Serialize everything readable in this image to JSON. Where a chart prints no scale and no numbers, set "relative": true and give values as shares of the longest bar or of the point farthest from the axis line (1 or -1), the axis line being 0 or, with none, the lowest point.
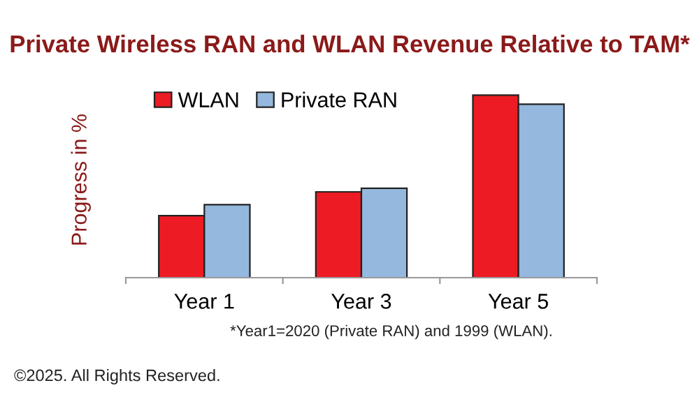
{
  "chart_data": {
    "type": "bar",
    "title": "Private Wireless RAN and WLAN Revenue Relative to TAM*",
    "ylabel": "Progress in %",
    "categories": [
      "Year 1",
      "Year 3",
      "Year 5"
    ],
    "relative": true,
    "legend": "top left",
    "grid": false,
    "series": [
      {
        "name": "WLAN",
        "color": "#ed1c24",
        "values": [
          0.34,
          0.47,
          1
        ]
      },
      {
        "name": "Private RAN",
        "color": "#95b8de",
        "values": [
          0.4,
          0.49,
          0.95
        ]
      }
    ],
    "annotations": [
      "*Year1=2020 (Private RAN) and 1999 (WLAN).",
      "©2025. All Rights Reserved."
    ]
  }
}
